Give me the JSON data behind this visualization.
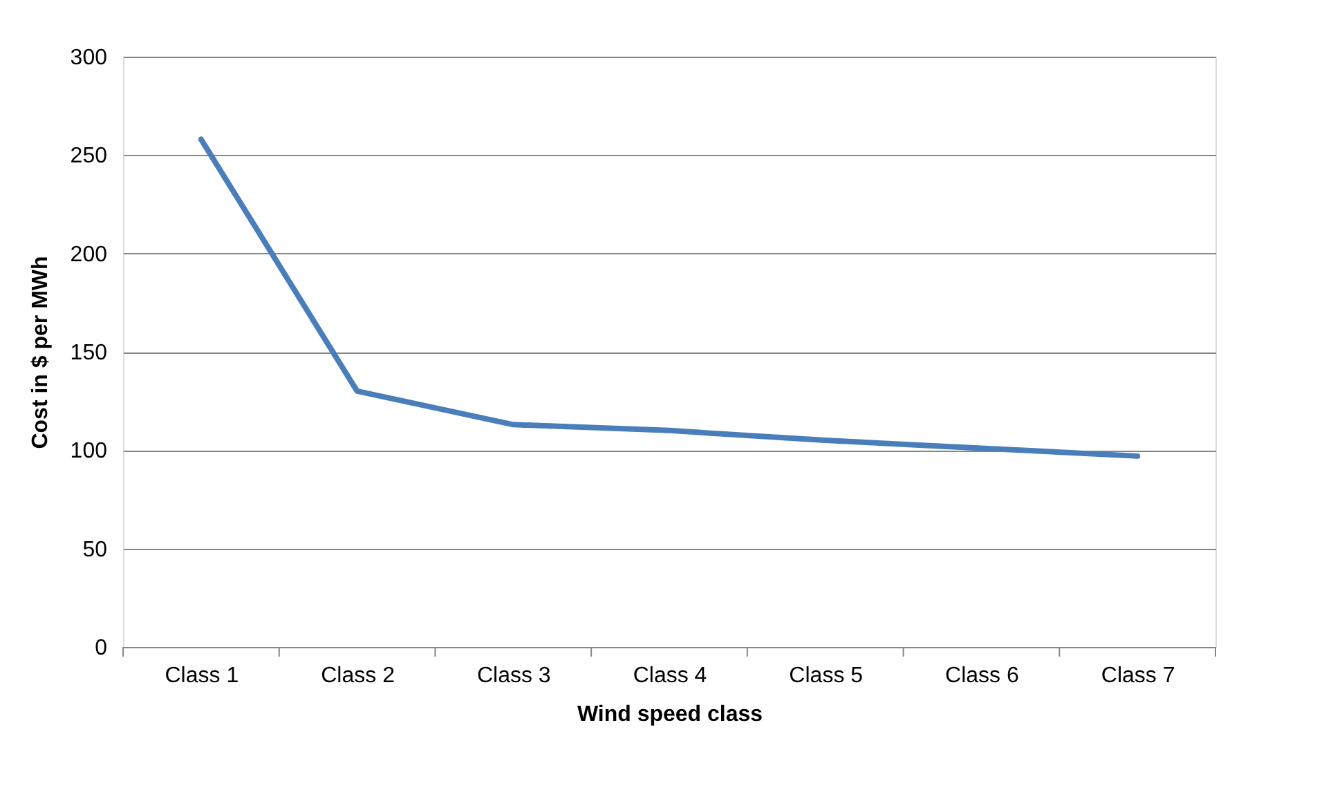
{
  "chart_data": {
    "type": "line",
    "xlabel": "Wind speed class",
    "ylabel": "Cost in $ per MWh",
    "categories": [
      "Class 1",
      "Class 2",
      "Class 3",
      "Class 4",
      "Class 5",
      "Class 6",
      "Class 7"
    ],
    "series": [
      {
        "color": "#4a7ebb",
        "values": [
          258,
          130,
          113,
          110,
          105,
          101,
          97
        ]
      }
    ],
    "ylim": [
      0,
      300
    ],
    "yticks": [
      0,
      50,
      100,
      150,
      200,
      250,
      300
    ],
    "grid": "y",
    "marker": "none",
    "line_style": "solid"
  }
}
